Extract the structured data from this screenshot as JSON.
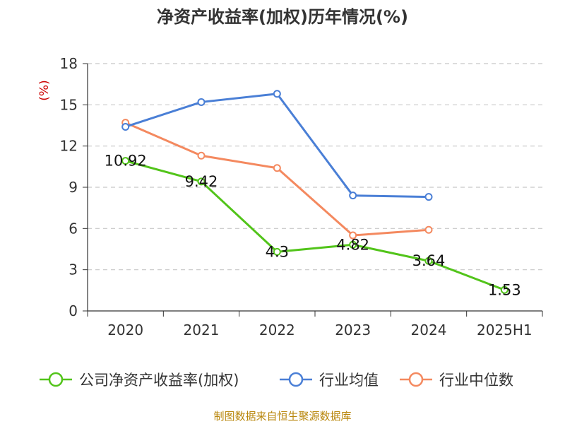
{
  "chart_data": {
    "type": "line",
    "title": "净资产收益率(加权)历年情况(%)",
    "ylabel": "(%)",
    "categories": [
      "2020",
      "2021",
      "2022",
      "2023",
      "2024",
      "2025H1"
    ],
    "ylim": [
      0,
      18
    ],
    "yticks": [
      0,
      3,
      6,
      9,
      12,
      15,
      18
    ],
    "grid": "horizontal-dashed",
    "legend_position": "bottom",
    "series": [
      {
        "name": "公司净资产收益率(加权)",
        "color": "#52c41a",
        "values": [
          10.92,
          9.42,
          4.3,
          4.82,
          3.64,
          1.53
        ],
        "labels": [
          "10.92",
          "9.42",
          "4.3",
          "4.82",
          "3.64",
          "1.53"
        ]
      },
      {
        "name": "行业均值",
        "color": "#4a7fd6",
        "values": [
          13.4,
          15.2,
          15.8,
          8.4,
          8.3,
          null
        ]
      },
      {
        "name": "行业中位数",
        "color": "#f4895f",
        "values": [
          13.7,
          11.3,
          10.4,
          5.5,
          5.9,
          null
        ]
      }
    ]
  },
  "footer": {
    "source": "制图数据来自恒生聚源数据库"
  }
}
